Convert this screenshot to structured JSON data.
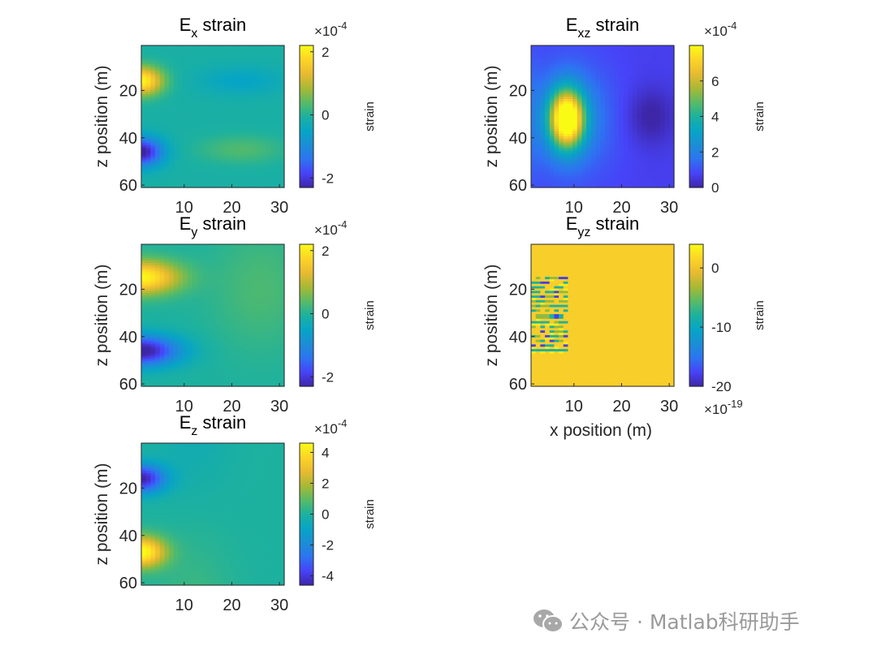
{
  "colors": {
    "parula": [
      "#3e26a8",
      "#4743f8",
      "#2d74f1",
      "#1b8ed5",
      "#07a5c5",
      "#1db19f",
      "#59bb65",
      "#aab934",
      "#e8ba31",
      "#fdd527",
      "#f9fb15"
    ],
    "axis": "#262626",
    "watermark": "#9a9a9a"
  },
  "chart_data": [
    {
      "id": "ex",
      "type": "heatmap",
      "title_main": "E",
      "title_sub": "x",
      "title_rest": " strain",
      "xlabel": "",
      "ylabel": "z position (m)",
      "x_ticks": [
        "10",
        "20",
        "30"
      ],
      "y_ticks": [
        "20",
        "40",
        "60"
      ],
      "xlim": [
        1,
        31
      ],
      "ylim": [
        1,
        61
      ],
      "colorbar": {
        "label": "strain",
        "exponent_base": "×10",
        "exponent": "-4",
        "exponent_position": "top",
        "clim": [
          -2.3,
          2.2
        ],
        "ticks": [
          "-2",
          "0",
          "2"
        ],
        "tick_values": [
          -2,
          0,
          2
        ]
      }
    },
    {
      "id": "exz",
      "type": "heatmap",
      "title_main": "E",
      "title_sub": "xz",
      "title_rest": " strain",
      "xlabel": "",
      "ylabel": "z position (m)",
      "x_ticks": [
        "10",
        "20",
        "30"
      ],
      "y_ticks": [
        "20",
        "40",
        "60"
      ],
      "xlim": [
        1,
        31
      ],
      "ylim": [
        1,
        61
      ],
      "colorbar": {
        "label": "strain",
        "exponent_base": "×10",
        "exponent": "-4",
        "exponent_position": "top",
        "clim": [
          0,
          8
        ],
        "ticks": [
          "0",
          "2",
          "4",
          "6"
        ],
        "tick_values": [
          0,
          2,
          4,
          6
        ]
      }
    },
    {
      "id": "ey",
      "type": "heatmap",
      "title_main": "E",
      "title_sub": "y",
      "title_rest": " strain",
      "xlabel": "",
      "ylabel": "z position (m)",
      "x_ticks": [
        "10",
        "20",
        "30"
      ],
      "y_ticks": [
        "20",
        "40",
        "60"
      ],
      "xlim": [
        1,
        31
      ],
      "ylim": [
        1,
        61
      ],
      "colorbar": {
        "label": "strain",
        "exponent_base": "×10",
        "exponent": "-4",
        "exponent_position": "top",
        "clim": [
          -2.3,
          2.2
        ],
        "ticks": [
          "-2",
          "0",
          "2"
        ],
        "tick_values": [
          -2,
          0,
          2
        ]
      }
    },
    {
      "id": "eyz",
      "type": "heatmap",
      "title_main": "E",
      "title_sub": "yz",
      "title_rest": " strain",
      "xlabel": "x position (m)",
      "ylabel": "z position (m)",
      "x_ticks": [
        "10",
        "20",
        "30"
      ],
      "y_ticks": [
        "20",
        "40",
        "60"
      ],
      "xlim": [
        1,
        31
      ],
      "ylim": [
        1,
        61
      ],
      "colorbar": {
        "label": "strain",
        "exponent_base": "×10",
        "exponent": "-19",
        "exponent_position": "bottom",
        "clim": [
          -20,
          4
        ],
        "ticks": [
          "-20",
          "-10",
          "0"
        ],
        "tick_values": [
          -20,
          -10,
          0
        ]
      }
    },
    {
      "id": "ez",
      "type": "heatmap",
      "title_main": "E",
      "title_sub": "z",
      "title_rest": " strain",
      "xlabel": "",
      "ylabel": "z position (m)",
      "x_ticks": [
        "10",
        "20",
        "30"
      ],
      "y_ticks": [
        "20",
        "40",
        "60"
      ],
      "xlim": [
        1,
        31
      ],
      "ylim": [
        1,
        61
      ],
      "colorbar": {
        "label": "strain",
        "exponent_base": "×10",
        "exponent": "-4",
        "exponent_position": "top",
        "clim": [
          -4.6,
          4.6
        ],
        "ticks": [
          "-4",
          "-2",
          "0",
          "2",
          "4"
        ],
        "tick_values": [
          -4,
          -2,
          0,
          2,
          4
        ]
      }
    }
  ],
  "watermark": {
    "text": "公众号 · Matlab科研助手",
    "icon": "wechat-icon"
  }
}
